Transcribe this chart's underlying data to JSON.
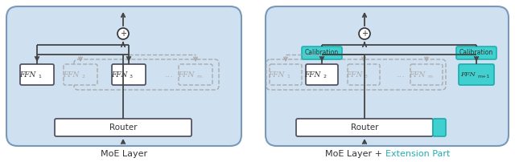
{
  "bg_color": "#cfe0f0",
  "box_white": "#ffffff",
  "box_cyan": "#40d0d0",
  "text_dark": "#333333",
  "text_gray": "#aaaaaa",
  "text_cyan": "#20b0b0",
  "edge_dark": "#555566",
  "edge_cyan": "#20b0b0",
  "edge_gray": "#aaaaaa",
  "edge_blue": "#7799bb",
  "arrow_dark": "#444444",
  "label_left": "MoE Layer",
  "label_right1": "MoE Layer + ",
  "label_right2": "Extension Part",
  "router": "Router",
  "calibration": "Calibration",
  "dots": "...",
  "fig_w": 6.4,
  "fig_h": 2.02,
  "dpi": 100
}
